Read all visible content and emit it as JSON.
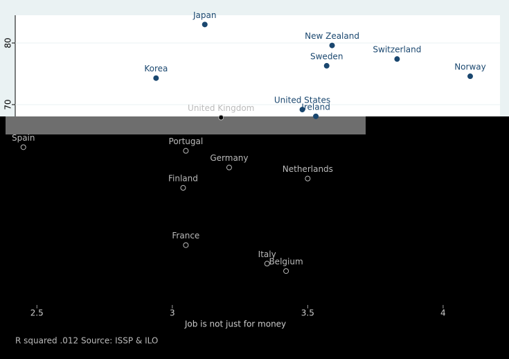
{
  "chart_data": {
    "type": "scatter",
    "x_label": "Job is not just for money",
    "note": "R squared .012 Source: ISSP & ILO",
    "color": "#1a476f",
    "labels": [
      "Japan",
      "New Zealand",
      "Sweden",
      "Switzerland",
      "Norway",
      "Korea",
      "United States",
      "United Kingdom",
      "Ireland",
      "Spain",
      "Portugal",
      "Germany",
      "Netherlands",
      "Finland",
      "France",
      "Italy",
      "Belgium"
    ],
    "x": [
      3.12,
      3.59,
      3.57,
      3.83,
      4.1,
      2.94,
      3.48,
      3.18,
      3.53,
      2.45,
      3.05,
      3.21,
      3.5,
      3.04,
      3.05,
      3.35,
      3.42
    ],
    "y": [
      83.0,
      79.6,
      76.3,
      77.4,
      74.6,
      74.3,
      69.2,
      67.9,
      68.1,
      63.1,
      62.5,
      59.8,
      58.0,
      56.5,
      47.2,
      44.2,
      43.0
    ],
    "xlim": [
      2.42,
      4.21
    ],
    "ylim": [
      37.5,
      84.5
    ],
    "xticks": [
      2.5,
      3,
      3.5,
      4
    ],
    "yticks": [
      70,
      80
    ],
    "grid": true
  }
}
